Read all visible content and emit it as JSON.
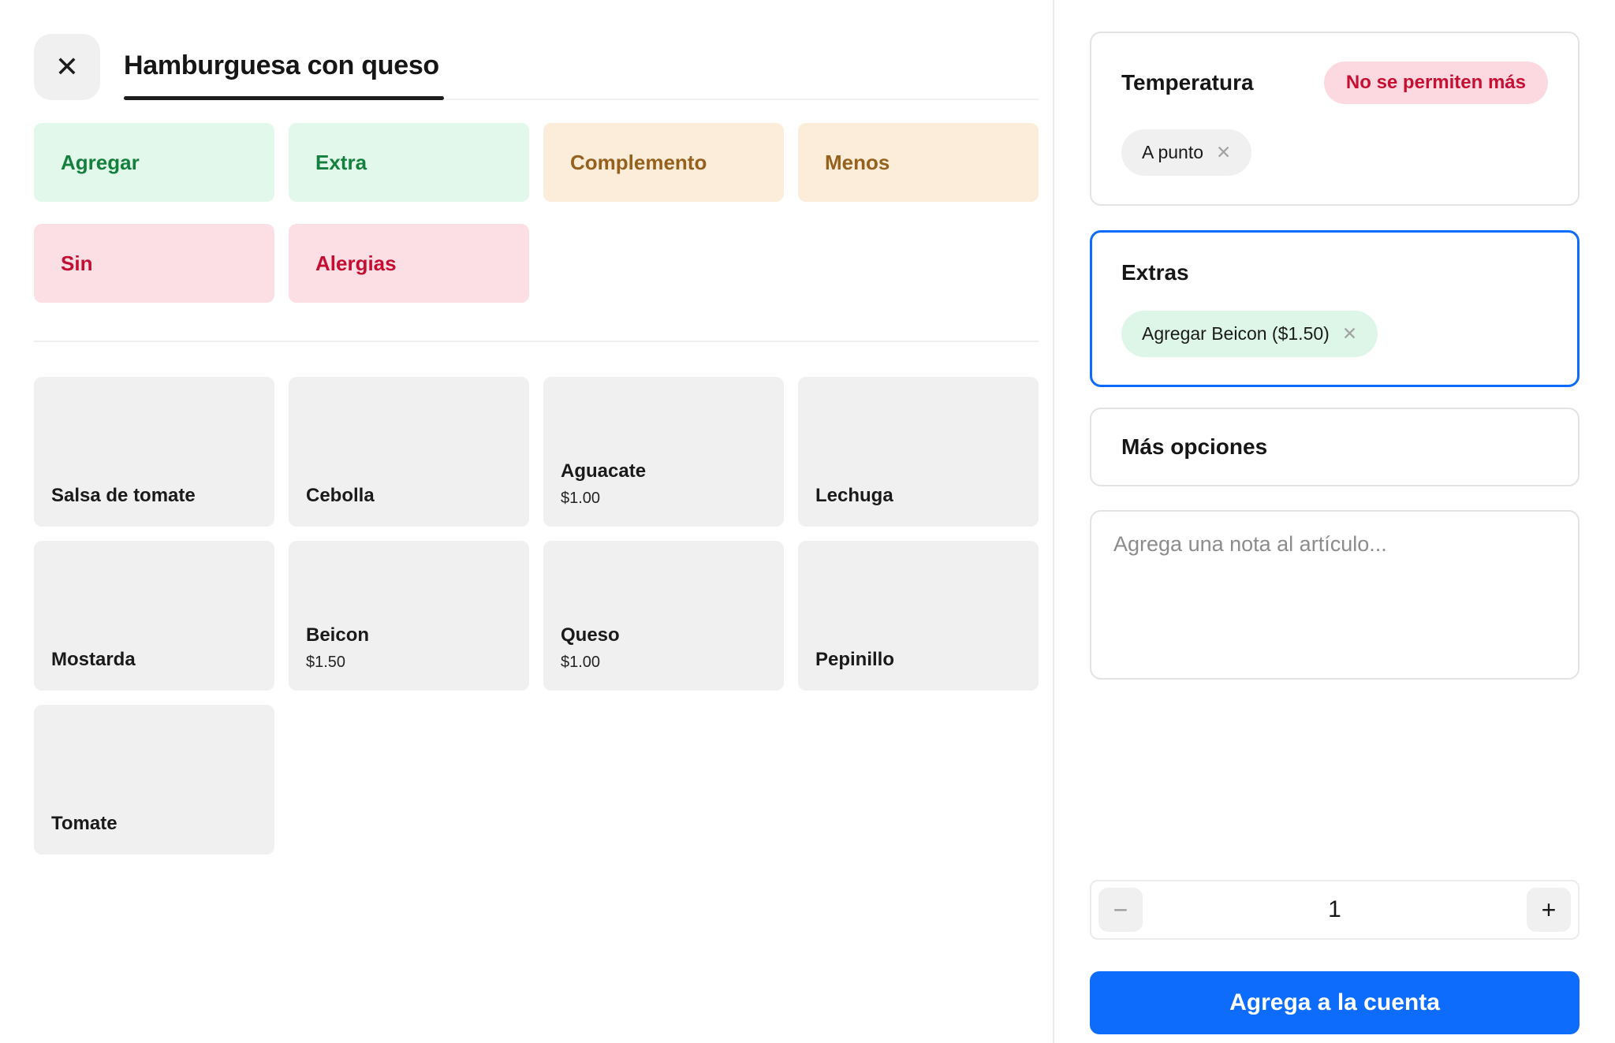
{
  "colors": {
    "accent_blue": "#0d6cfb",
    "green_chip_bg": "#e2f8eb",
    "green_chip_text": "#15803d",
    "orange_chip_bg": "#fcedda",
    "orange_chip_text": "#96611c",
    "red_chip_bg": "#fcdfe5",
    "red_chip_text": "#c30e31",
    "badge_bg": "#fcd9e1",
    "badge_text": "#c60f32",
    "tile_bg": "#f0f0f1",
    "mint_tag_bg": "#ddf6e8"
  },
  "header": {
    "title": "Hamburguesa con queso",
    "close_icon": "✕"
  },
  "filters": [
    {
      "label": "Agregar"
    },
    {
      "label": "Extra"
    },
    {
      "label": "Complemento"
    },
    {
      "label": "Menos"
    },
    {
      "label": "Sin"
    },
    {
      "label": "Alergias"
    }
  ],
  "modifiers": [
    {
      "name": "Salsa de tomate",
      "price": ""
    },
    {
      "name": "Cebolla",
      "price": ""
    },
    {
      "name": "Aguacate",
      "price": "$1.00"
    },
    {
      "name": "Lechuga",
      "price": ""
    },
    {
      "name": "Mostarda",
      "price": ""
    },
    {
      "name": "Beicon",
      "price": "$1.50"
    },
    {
      "name": "Queso",
      "price": "$1.00"
    },
    {
      "name": "Pepinillo",
      "price": ""
    },
    {
      "name": "Tomate",
      "price": ""
    }
  ],
  "temperature": {
    "title": "Temperatura",
    "badge": "No se permiten más",
    "selected": {
      "label": "A punto",
      "remove_icon": "✕"
    }
  },
  "extras": {
    "title": "Extras",
    "selected": {
      "label": "Agregar Beicon ($1.50)",
      "remove_icon": "✕"
    }
  },
  "more_options": {
    "title": "Más opciones"
  },
  "note": {
    "placeholder": "Agrega una nota al artículo..."
  },
  "quantity": {
    "value": "1",
    "decrease_icon": "−",
    "increase_icon": "+"
  },
  "submit": {
    "label": "Agrega a la cuenta"
  }
}
